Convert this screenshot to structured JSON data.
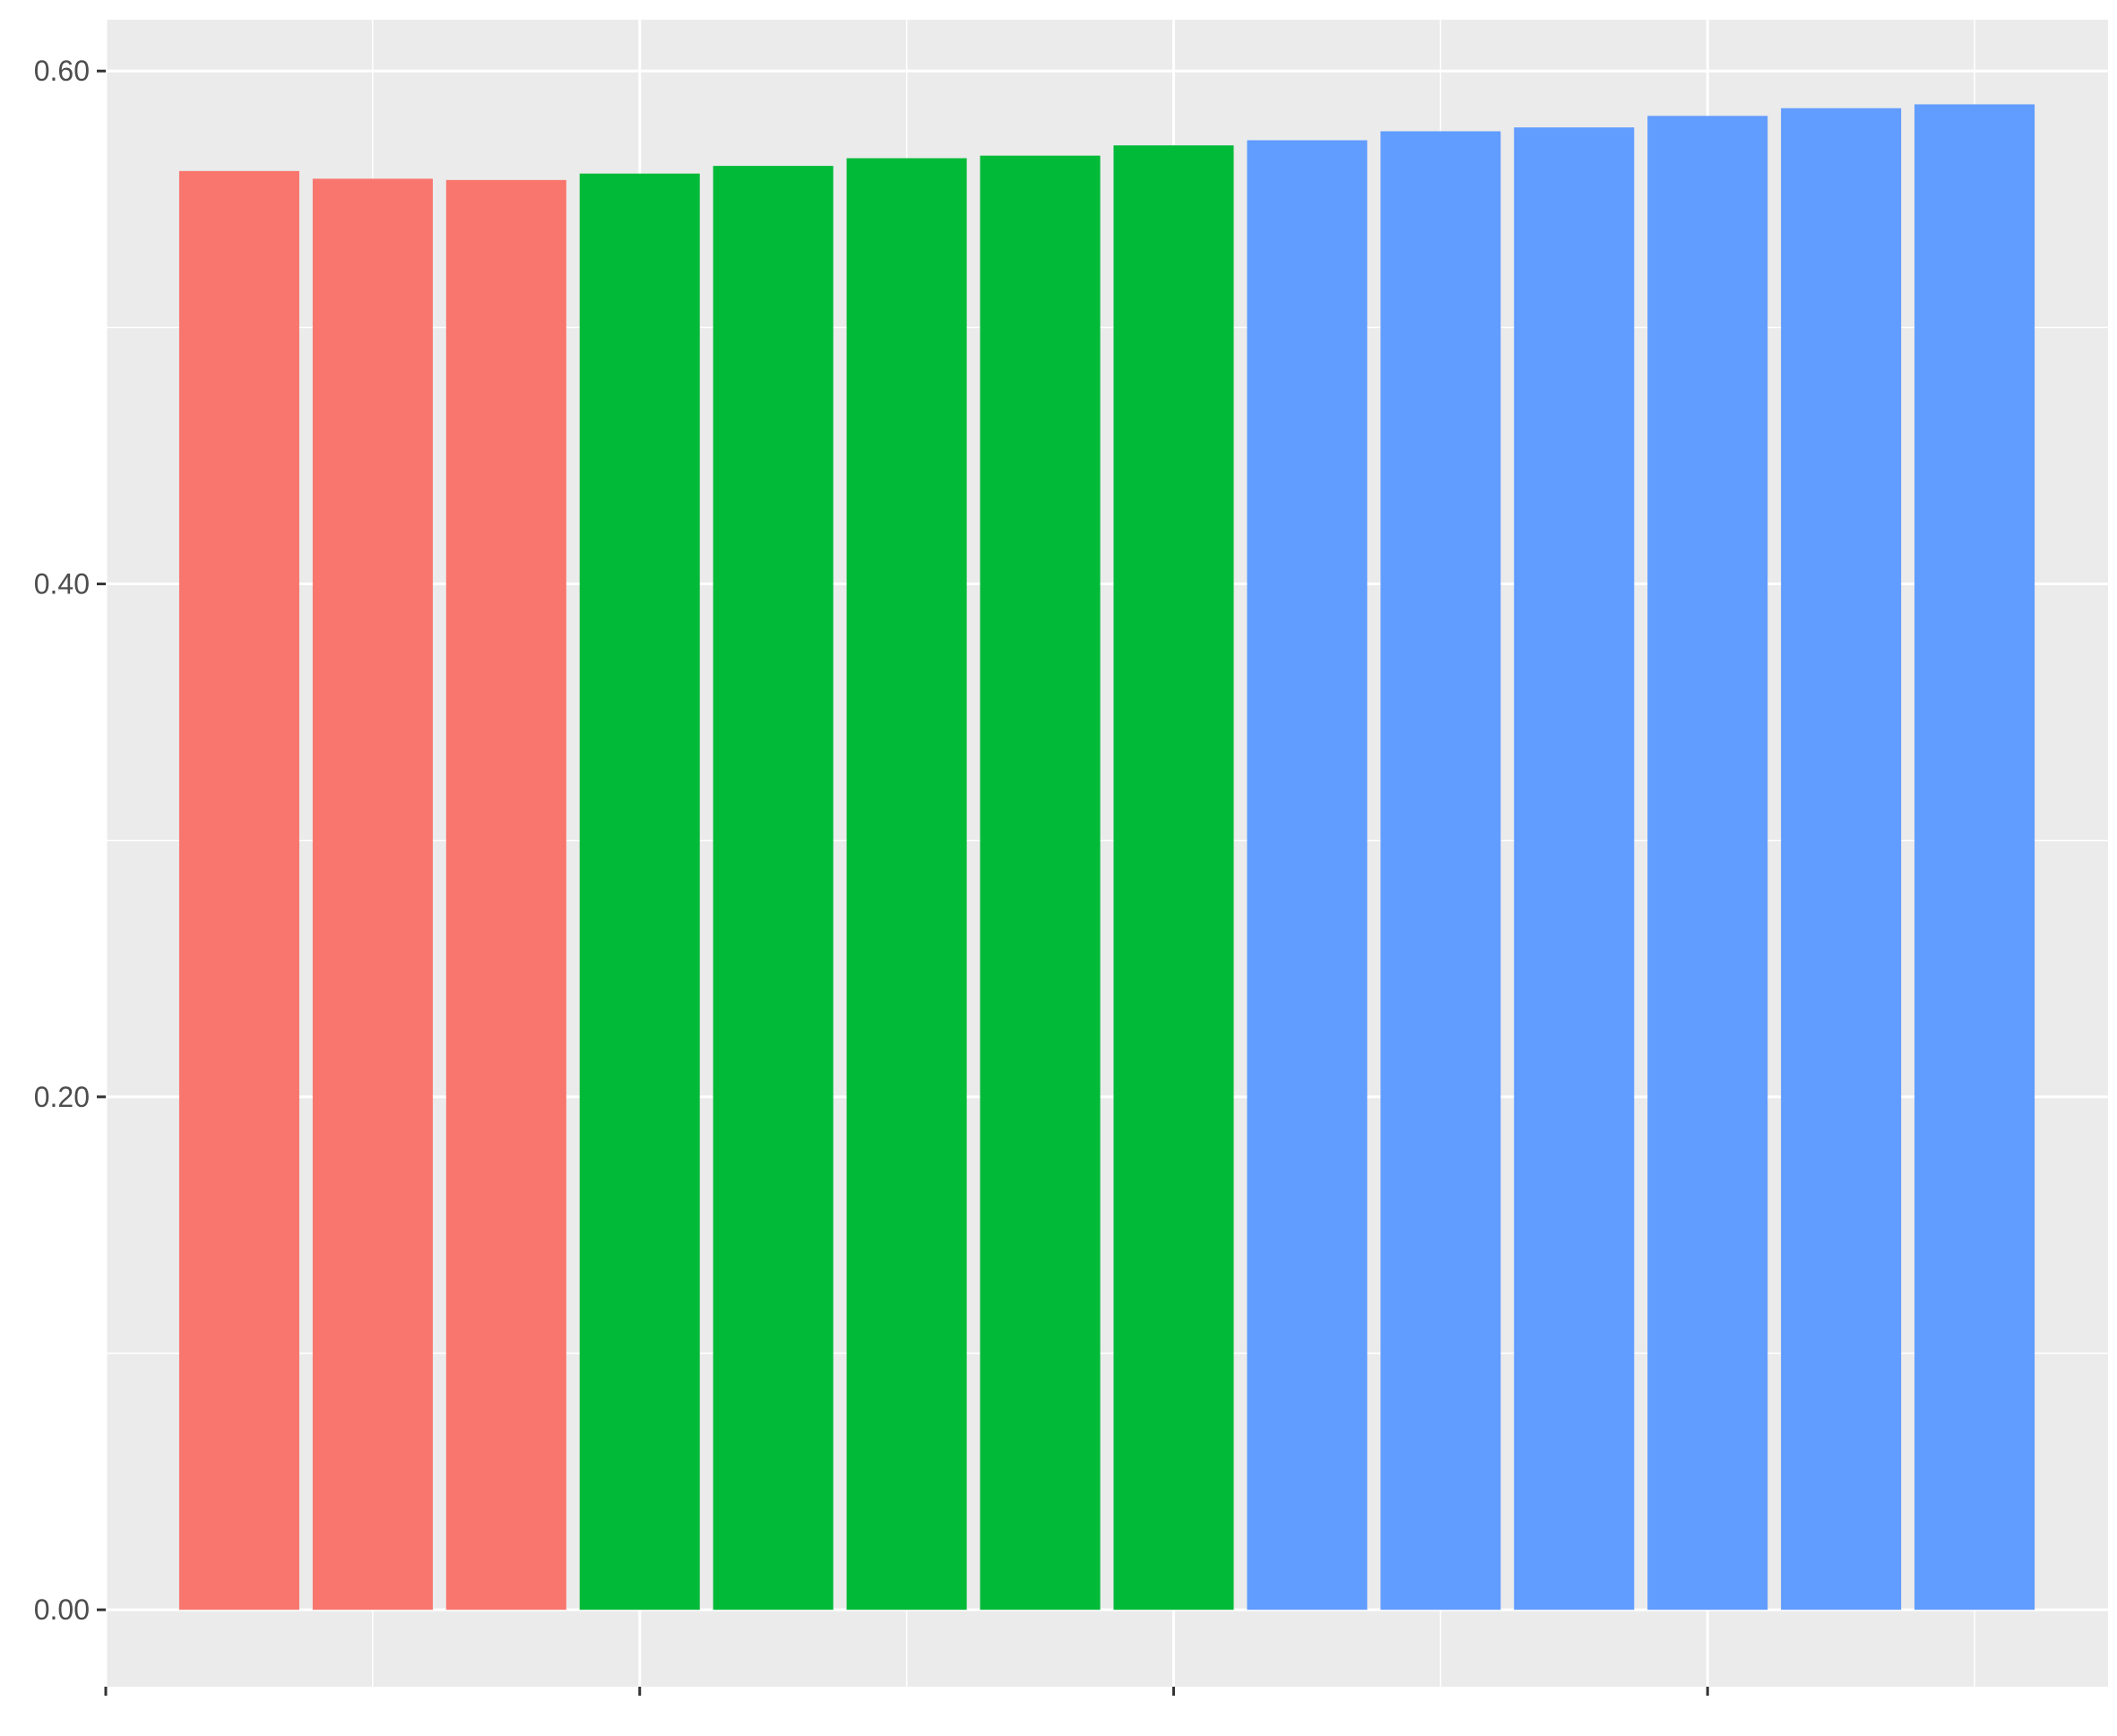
{
  "chart_data": {
    "type": "bar",
    "title": "",
    "xlabel": "",
    "ylabel": "",
    "ylim": [
      -0.03,
      0.62
    ],
    "xlim": [
      0.0,
      15.0
    ],
    "y_ticks": [
      {
        "value": 0.0,
        "label": "0.00"
      },
      {
        "value": 0.2,
        "label": "0.20"
      },
      {
        "value": 0.4,
        "label": "0.40"
      },
      {
        "value": 0.6,
        "label": "0.60"
      }
    ],
    "x_major_ticks": [
      0,
      4,
      8,
      12
    ],
    "x_minor_gridlines": [
      2,
      6,
      10,
      14
    ],
    "y_minor_gridlines": [
      0.1,
      0.3,
      0.5
    ],
    "grid": true,
    "legend": "none",
    "background_color": "#EBEBEB",
    "gridline_color": "#FFFFFF",
    "bars": [
      {
        "x": 1,
        "value": 0.561,
        "color": "#F8766D"
      },
      {
        "x": 2,
        "value": 0.558,
        "color": "#F8766D"
      },
      {
        "x": 3,
        "value": 0.5575,
        "color": "#F8766D"
      },
      {
        "x": 4,
        "value": 0.56,
        "color": "#00BA38"
      },
      {
        "x": 5,
        "value": 0.563,
        "color": "#00BA38"
      },
      {
        "x": 6,
        "value": 0.566,
        "color": "#00BA38"
      },
      {
        "x": 7,
        "value": 0.567,
        "color": "#00BA38"
      },
      {
        "x": 8,
        "value": 0.571,
        "color": "#00BA38"
      },
      {
        "x": 9,
        "value": 0.573,
        "color": "#619CFF"
      },
      {
        "x": 10,
        "value": 0.5765,
        "color": "#619CFF"
      },
      {
        "x": 11,
        "value": 0.578,
        "color": "#619CFF"
      },
      {
        "x": 12,
        "value": 0.5825,
        "color": "#619CFF"
      },
      {
        "x": 13,
        "value": 0.5855,
        "color": "#619CFF"
      },
      {
        "x": 14,
        "value": 0.587,
        "color": "#619CFF"
      }
    ]
  }
}
